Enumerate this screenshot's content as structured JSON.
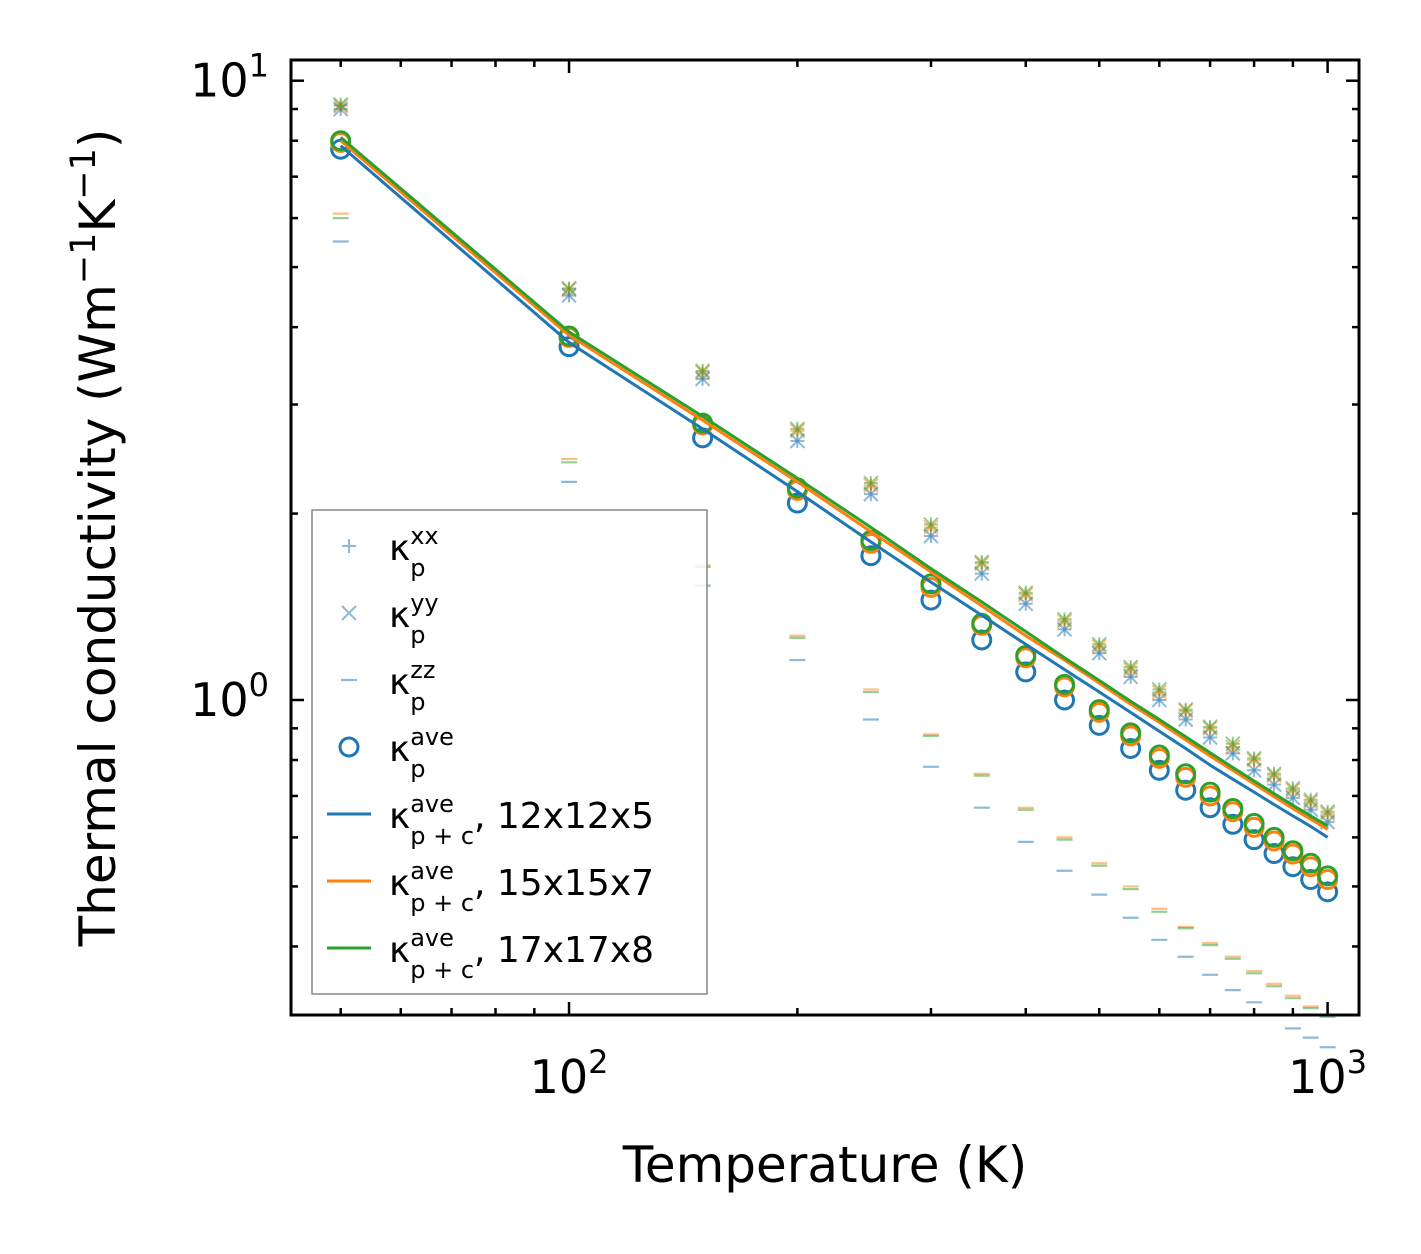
{
  "chart_data": {
    "type": "scatter",
    "xscale": "log",
    "yscale": "log",
    "xlabel": "Temperature (K)",
    "ylabel_parts": {
      "prefix": "Thermal conductivity (Wm",
      "exp1": "−1",
      "mid": "K",
      "exp2": "−1",
      "suffix": ")"
    },
    "xlim": [
      43,
      1100
    ],
    "ylim": [
      0.31,
      10.8
    ],
    "xticks": [
      {
        "value": 100,
        "base": "10",
        "exp": "2"
      },
      {
        "value": 1000,
        "base": "10",
        "exp": "3"
      }
    ],
    "yticks": [
      {
        "value": 1,
        "base": "10",
        "exp": "0"
      },
      {
        "value": 10,
        "base": "10",
        "exp": "1"
      }
    ],
    "temperatures": [
      50,
      100,
      150,
      200,
      250,
      300,
      350,
      400,
      450,
      500,
      550,
      600,
      650,
      700,
      750,
      800,
      850,
      900,
      950,
      1000
    ],
    "colors": {
      "blue": "#1f77b4",
      "orange": "#ff7f0e",
      "green": "#2ca02c"
    },
    "series": [
      {
        "name": "kp_xx",
        "component": "xx",
        "grid": "12x12x5",
        "color": "#1f77b4",
        "marker": "plus",
        "values": [
          9.0,
          4.5,
          3.3,
          2.62,
          2.15,
          1.84,
          1.6,
          1.43,
          1.3,
          1.19,
          1.09,
          1.0,
          0.93,
          0.87,
          0.82,
          0.77,
          0.73,
          0.695,
          0.665,
          0.635
        ]
      },
      {
        "name": "kp_xx",
        "component": "xx",
        "grid": "15x15x7",
        "color": "#ff7f0e",
        "marker": "plus",
        "values": [
          9.1,
          4.6,
          3.38,
          2.72,
          2.22,
          1.9,
          1.66,
          1.48,
          1.34,
          1.22,
          1.12,
          1.03,
          0.96,
          0.9,
          0.84,
          0.8,
          0.755,
          0.715,
          0.685,
          0.655
        ]
      },
      {
        "name": "kp_xx",
        "component": "xx",
        "grid": "17x17x8",
        "color": "#2ca02c",
        "marker": "plus",
        "values": [
          9.15,
          4.62,
          3.4,
          2.74,
          2.24,
          1.92,
          1.67,
          1.49,
          1.35,
          1.23,
          1.13,
          1.04,
          0.965,
          0.905,
          0.85,
          0.805,
          0.76,
          0.72,
          0.69,
          0.66
        ]
      },
      {
        "name": "kp_yy",
        "component": "yy",
        "grid": "12x12x5",
        "color": "#1f77b4",
        "marker": "x",
        "values": [
          9.0,
          4.5,
          3.3,
          2.62,
          2.15,
          1.84,
          1.6,
          1.43,
          1.3,
          1.19,
          1.09,
          1.0,
          0.93,
          0.87,
          0.82,
          0.77,
          0.73,
          0.695,
          0.665,
          0.635
        ]
      },
      {
        "name": "kp_yy",
        "component": "yy",
        "grid": "15x15x7",
        "color": "#ff7f0e",
        "marker": "x",
        "values": [
          9.1,
          4.6,
          3.38,
          2.72,
          2.22,
          1.9,
          1.66,
          1.48,
          1.34,
          1.22,
          1.12,
          1.03,
          0.96,
          0.9,
          0.84,
          0.8,
          0.755,
          0.715,
          0.685,
          0.655
        ]
      },
      {
        "name": "kp_yy",
        "component": "yy",
        "grid": "17x17x8",
        "color": "#2ca02c",
        "marker": "x",
        "values": [
          9.15,
          4.62,
          3.4,
          2.74,
          2.24,
          1.92,
          1.67,
          1.49,
          1.35,
          1.23,
          1.13,
          1.04,
          0.965,
          0.905,
          0.85,
          0.805,
          0.76,
          0.72,
          0.69,
          0.66
        ]
      },
      {
        "name": "kp_zz",
        "component": "zz",
        "grid": "12x12x5",
        "color": "#1f77b4",
        "marker": "hline",
        "values": [
          5.5,
          2.25,
          1.53,
          1.16,
          0.93,
          0.78,
          0.67,
          0.59,
          0.53,
          0.485,
          0.445,
          0.41,
          0.385,
          0.36,
          0.34,
          0.325,
          0.31,
          0.295,
          0.285,
          0.275
        ]
      },
      {
        "name": "kp_zz",
        "component": "zz",
        "grid": "15x15x7",
        "color": "#ff7f0e",
        "marker": "hline",
        "values": [
          6.1,
          2.45,
          1.65,
          1.27,
          1.04,
          0.88,
          0.76,
          0.67,
          0.6,
          0.545,
          0.5,
          0.46,
          0.43,
          0.405,
          0.385,
          0.365,
          0.348,
          0.333,
          0.32,
          0.31
        ]
      },
      {
        "name": "kp_zz",
        "component": "zz",
        "grid": "17x17x8",
        "color": "#2ca02c",
        "marker": "hline",
        "values": [
          6.0,
          2.42,
          1.64,
          1.26,
          1.03,
          0.875,
          0.755,
          0.665,
          0.595,
          0.54,
          0.495,
          0.455,
          0.428,
          0.402,
          0.382,
          0.362,
          0.345,
          0.33,
          0.318,
          0.308
        ]
      },
      {
        "name": "kp_ave",
        "component": "ave",
        "grid": "12x12x5",
        "color": "#1f77b4",
        "marker": "circle",
        "values": [
          7.75,
          3.72,
          2.65,
          2.08,
          1.71,
          1.45,
          1.25,
          1.11,
          1.0,
          0.91,
          0.835,
          0.77,
          0.715,
          0.67,
          0.63,
          0.595,
          0.565,
          0.538,
          0.513,
          0.49
        ]
      },
      {
        "name": "kp_ave",
        "component": "ave",
        "grid": "15x15x7",
        "color": "#ff7f0e",
        "marker": "circle",
        "values": [
          7.95,
          3.85,
          2.78,
          2.18,
          1.79,
          1.52,
          1.32,
          1.17,
          1.05,
          0.955,
          0.875,
          0.805,
          0.75,
          0.7,
          0.66,
          0.623,
          0.592,
          0.564,
          0.538,
          0.513
        ]
      },
      {
        "name": "kp_ave",
        "component": "ave",
        "grid": "17x17x8",
        "color": "#2ca02c",
        "marker": "circle",
        "values": [
          8.0,
          3.87,
          2.8,
          2.2,
          1.81,
          1.54,
          1.33,
          1.18,
          1.06,
          0.965,
          0.885,
          0.815,
          0.76,
          0.71,
          0.668,
          0.632,
          0.6,
          0.571,
          0.545,
          0.52
        ]
      },
      {
        "name": "kpc_ave",
        "component": "ave p+c",
        "grid": "12x12x5",
        "color": "#1f77b4",
        "marker": "line",
        "values": [
          7.85,
          3.78,
          2.74,
          2.17,
          1.8,
          1.55,
          1.37,
          1.23,
          1.12,
          1.03,
          0.955,
          0.89,
          0.835,
          0.785,
          0.745,
          0.71,
          0.678,
          0.65,
          0.625,
          0.6
        ]
      },
      {
        "name": "kpc_ave",
        "component": "ave p+c",
        "grid": "15x15x7",
        "color": "#ff7f0e",
        "marker": "line",
        "values": [
          8.0,
          3.88,
          2.83,
          2.25,
          1.87,
          1.61,
          1.42,
          1.27,
          1.16,
          1.065,
          0.985,
          0.92,
          0.862,
          0.812,
          0.77,
          0.732,
          0.698,
          0.668,
          0.642,
          0.618
        ]
      },
      {
        "name": "kpc_ave",
        "component": "ave p+c",
        "grid": "17x17x8",
        "color": "#2ca02c",
        "marker": "line",
        "values": [
          8.1,
          3.93,
          2.87,
          2.28,
          1.9,
          1.63,
          1.44,
          1.29,
          1.17,
          1.075,
          0.995,
          0.93,
          0.872,
          0.822,
          0.778,
          0.74,
          0.706,
          0.676,
          0.65,
          0.626
        ]
      }
    ],
    "legend": {
      "position": "lower-left",
      "entries": [
        {
          "marker": "plus",
          "color": "#1f77b4",
          "base": "κ",
          "sup": "xx",
          "sub": "p",
          "suffix": ""
        },
        {
          "marker": "x",
          "color": "#1f77b4",
          "base": "κ",
          "sup": "yy",
          "sub": "p",
          "suffix": ""
        },
        {
          "marker": "hline",
          "color": "#1f77b4",
          "base": "κ",
          "sup": "zz",
          "sub": "p",
          "suffix": ""
        },
        {
          "marker": "circle",
          "color": "#1f77b4",
          "base": "κ",
          "sup": "ave",
          "sub": "p",
          "suffix": ""
        },
        {
          "marker": "line",
          "color": "#1f77b4",
          "base": "κ",
          "sup": "ave",
          "sub": "p + c",
          "suffix": ", 12x12x5"
        },
        {
          "marker": "line",
          "color": "#ff7f0e",
          "base": "κ",
          "sup": "ave",
          "sub": "p + c",
          "suffix": ", 15x15x7"
        },
        {
          "marker": "line",
          "color": "#2ca02c",
          "base": "κ",
          "sup": "ave",
          "sub": "p + c",
          "suffix": ", 17x17x8"
        }
      ]
    }
  }
}
